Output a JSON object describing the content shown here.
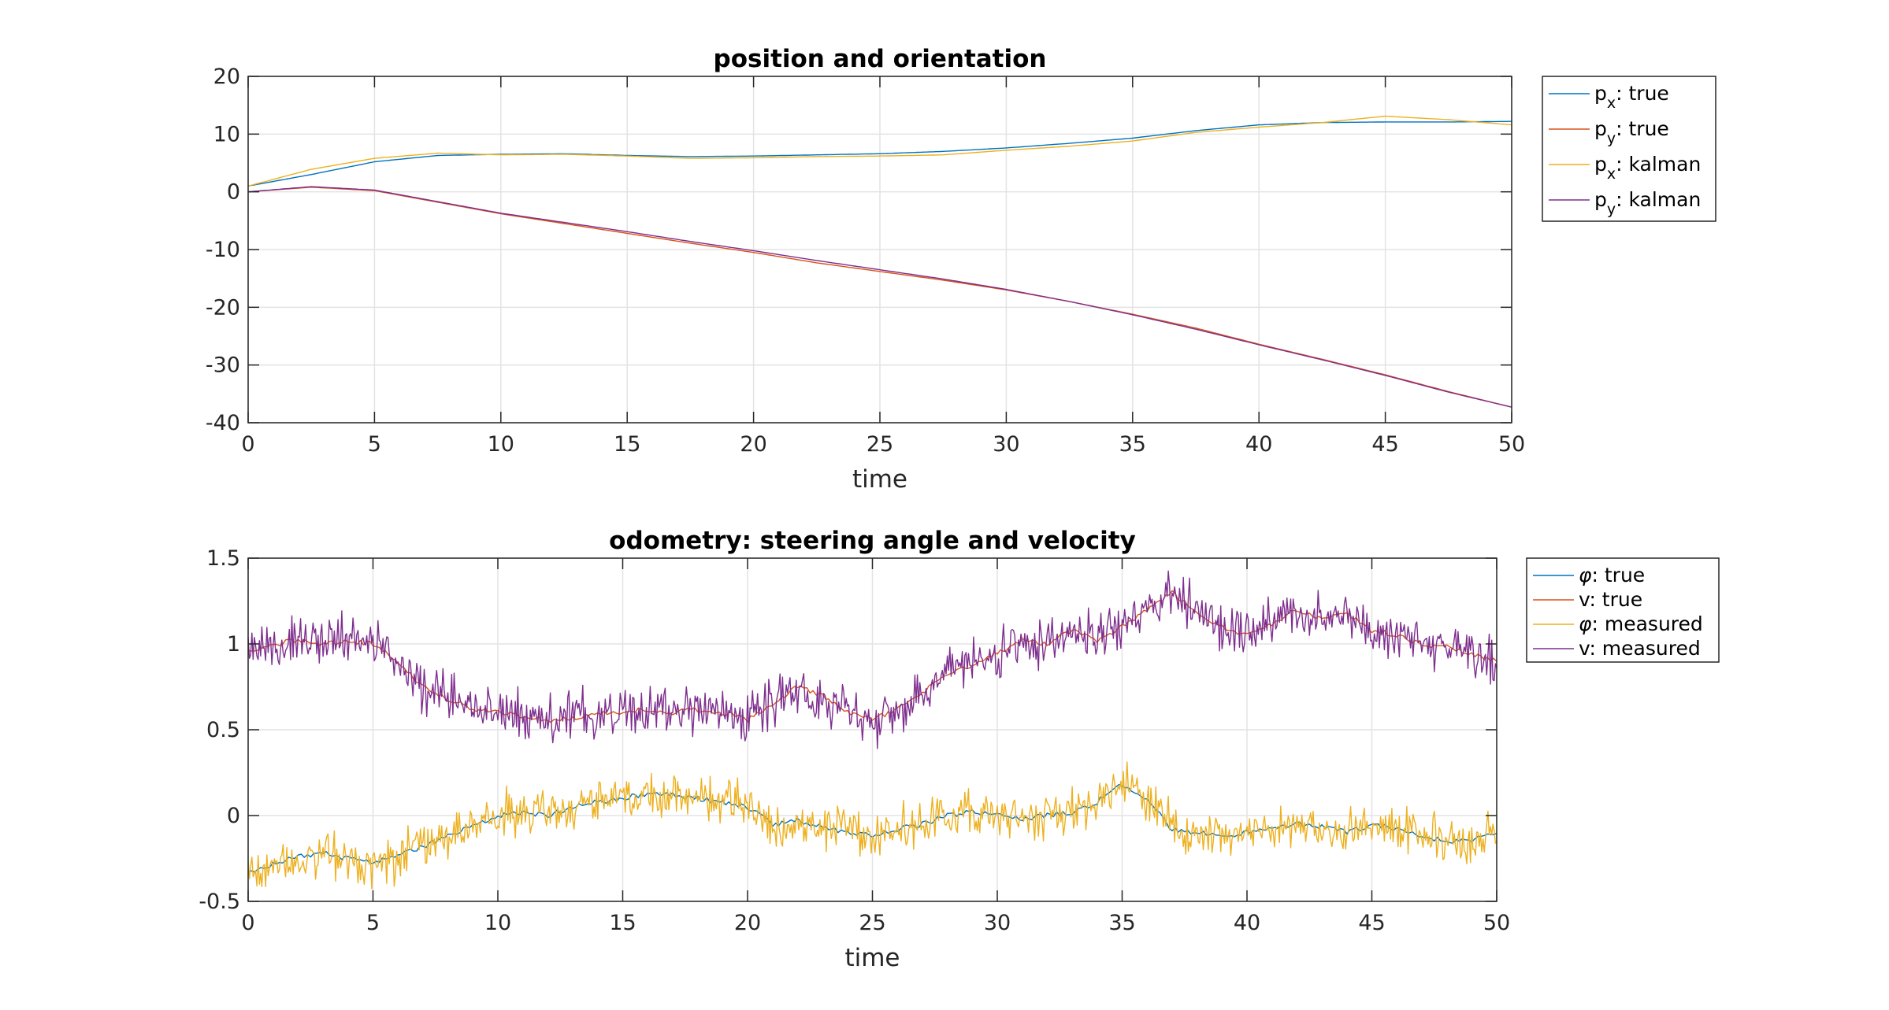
{
  "colors": {
    "blue": "#0072bd",
    "orange": "#d95319",
    "yellow": "#edb120",
    "purple": "#7e2f8e"
  },
  "chart_data": [
    {
      "type": "line",
      "title": "position and orientation",
      "xlabel": "time",
      "ylabel": "",
      "xlim": [
        0,
        50
      ],
      "ylim": [
        -40,
        20
      ],
      "xticks": [
        0,
        5,
        10,
        15,
        20,
        25,
        30,
        35,
        40,
        45,
        50
      ],
      "yticks": [
        -40,
        -30,
        -20,
        -10,
        0,
        10,
        20
      ],
      "grid": true,
      "legend_position": "outside-top-right",
      "series": [
        {
          "name": "p_x: true",
          "legend": {
            "main": "p",
            "sub": "x",
            "rest": ": true"
          },
          "color": "#0072bd",
          "x": [
            0,
            2.5,
            5,
            7.5,
            10,
            12.5,
            15,
            17.5,
            20,
            22.5,
            25,
            27.5,
            30,
            32.5,
            35,
            37.5,
            40,
            42.5,
            45,
            47.5,
            50
          ],
          "y": [
            1.0,
            3.0,
            5.2,
            6.3,
            6.5,
            6.6,
            6.3,
            6.1,
            6.2,
            6.4,
            6.6,
            7.0,
            7.6,
            8.4,
            9.3,
            10.6,
            11.6,
            12.0,
            12.1,
            12.1,
            12.2
          ]
        },
        {
          "name": "p_y: true",
          "legend": {
            "main": "p",
            "sub": "y",
            "rest": ": true"
          },
          "color": "#d95319",
          "x": [
            0,
            2.5,
            5,
            7.5,
            10,
            12.5,
            15,
            17.5,
            20,
            22.5,
            25,
            27.5,
            30,
            32.5,
            35,
            37.5,
            40,
            42.5,
            45,
            47.5,
            50
          ],
          "y": [
            0.0,
            0.8,
            0.2,
            -1.8,
            -3.8,
            -5.5,
            -7.2,
            -8.9,
            -10.5,
            -12.3,
            -13.8,
            -15.3,
            -17.0,
            -19.0,
            -21.2,
            -23.6,
            -26.4,
            -29.0,
            -31.7,
            -34.6,
            -37.3
          ]
        },
        {
          "name": "p_x: kalman",
          "legend": {
            "main": "p",
            "sub": "x",
            "rest": ": kalman"
          },
          "color": "#edb120",
          "x": [
            0,
            2.5,
            5,
            7.5,
            10,
            12.5,
            15,
            17.5,
            20,
            22.5,
            25,
            27.5,
            30,
            32.5,
            35,
            37.5,
            40,
            42.5,
            45,
            47.5,
            50
          ],
          "y": [
            1.0,
            3.9,
            5.8,
            6.7,
            6.4,
            6.5,
            6.2,
            5.8,
            5.9,
            6.1,
            6.2,
            6.4,
            7.2,
            7.9,
            8.8,
            10.3,
            11.2,
            12.0,
            13.1,
            12.5,
            11.6
          ]
        },
        {
          "name": "p_y: kalman",
          "legend": {
            "main": "p",
            "sub": "y",
            "rest": ": kalman"
          },
          "color": "#7e2f8e",
          "x": [
            0,
            2.5,
            5,
            7.5,
            10,
            12.5,
            15,
            17.5,
            20,
            22.5,
            25,
            27.5,
            30,
            32.5,
            35,
            37.5,
            40,
            42.5,
            45,
            47.5,
            50
          ],
          "y": [
            0.0,
            0.9,
            0.3,
            -1.7,
            -3.7,
            -5.3,
            -6.9,
            -8.6,
            -10.2,
            -11.9,
            -13.5,
            -15.1,
            -16.9,
            -19.0,
            -21.3,
            -23.8,
            -26.5,
            -29.1,
            -31.8,
            -34.7,
            -37.3
          ]
        }
      ]
    },
    {
      "type": "line",
      "title": "odometry: steering angle and velocity",
      "xlabel": "time",
      "ylabel": "",
      "xlim": [
        0,
        50
      ],
      "ylim": [
        -0.5,
        1.5
      ],
      "xticks": [
        0,
        5,
        10,
        15,
        20,
        25,
        30,
        35,
        40,
        45,
        50
      ],
      "yticks": [
        -0.5,
        0,
        0.5,
        1,
        1.5
      ],
      "grid": true,
      "legend_position": "outside-top-right",
      "series": [
        {
          "name": "φ: true",
          "legend": {
            "main": "φ",
            "sub": "",
            "rest": ": true"
          },
          "color": "#0072bd",
          "x": [
            0,
            1,
            2,
            3,
            4,
            5,
            6,
            7,
            8,
            9,
            10,
            11,
            12,
            13,
            14,
            15,
            16,
            17,
            18,
            19,
            20,
            21,
            22,
            23,
            24,
            25,
            26,
            27,
            28,
            29,
            30,
            31,
            32,
            33,
            34,
            35,
            36,
            37,
            38,
            39,
            40,
            41,
            42,
            43,
            44,
            45,
            46,
            47,
            48,
            49,
            50
          ],
          "y": [
            -0.33,
            -0.28,
            -0.24,
            -0.22,
            -0.25,
            -0.27,
            -0.23,
            -0.18,
            -0.12,
            -0.06,
            0.0,
            0.02,
            0.0,
            0.05,
            0.08,
            0.1,
            0.13,
            0.12,
            0.1,
            0.08,
            0.05,
            -0.05,
            -0.03,
            -0.06,
            -0.1,
            -0.12,
            -0.08,
            -0.05,
            0.0,
            0.02,
            0.0,
            -0.02,
            0.0,
            0.02,
            0.08,
            0.18,
            0.1,
            -0.08,
            -0.1,
            -0.12,
            -0.1,
            -0.08,
            -0.05,
            -0.06,
            -0.1,
            -0.05,
            -0.08,
            -0.12,
            -0.15,
            -0.14,
            -0.1
          ]
        },
        {
          "name": "v: true",
          "legend": {
            "main": "v",
            "sub": "",
            "rest": ": true"
          },
          "color": "#d95319",
          "x": [
            0,
            1,
            2,
            3,
            4,
            5,
            6,
            7,
            8,
            9,
            10,
            11,
            12,
            13,
            14,
            15,
            16,
            17,
            18,
            19,
            20,
            21,
            22,
            23,
            24,
            25,
            26,
            27,
            28,
            29,
            30,
            31,
            32,
            33,
            34,
            35,
            36,
            37,
            38,
            39,
            40,
            41,
            42,
            43,
            44,
            45,
            46,
            47,
            48,
            49,
            50
          ],
          "y": [
            0.96,
            1.0,
            1.02,
            1.0,
            1.02,
            1.0,
            0.9,
            0.75,
            0.68,
            0.62,
            0.6,
            0.58,
            0.55,
            0.57,
            0.6,
            0.6,
            0.62,
            0.6,
            0.62,
            0.6,
            0.56,
            0.65,
            0.75,
            0.7,
            0.6,
            0.56,
            0.62,
            0.72,
            0.82,
            0.88,
            0.95,
            1.02,
            1.0,
            1.08,
            1.02,
            1.1,
            1.2,
            1.3,
            1.18,
            1.1,
            1.05,
            1.12,
            1.2,
            1.15,
            1.18,
            1.08,
            1.05,
            1.0,
            0.98,
            0.94,
            0.9
          ]
        },
        {
          "name": "φ: measured",
          "legend": {
            "main": "φ",
            "sub": "",
            "rest": ": measured"
          },
          "color": "#edb120",
          "x": [
            0,
            1,
            2,
            3,
            4,
            5,
            6,
            7,
            8,
            9,
            10,
            11,
            12,
            13,
            14,
            15,
            16,
            17,
            18,
            19,
            20,
            21,
            22,
            23,
            24,
            25,
            26,
            27,
            28,
            29,
            30,
            31,
            32,
            33,
            34,
            35,
            36,
            37,
            38,
            39,
            40,
            41,
            42,
            43,
            44,
            45,
            46,
            47,
            48,
            49,
            50
          ],
          "y": [
            -0.33,
            -0.28,
            -0.24,
            -0.22,
            -0.25,
            -0.27,
            -0.23,
            -0.18,
            -0.12,
            -0.06,
            0.0,
            0.02,
            0.0,
            0.05,
            0.08,
            0.1,
            0.13,
            0.12,
            0.1,
            0.08,
            0.05,
            -0.05,
            -0.03,
            -0.06,
            -0.1,
            -0.12,
            -0.08,
            -0.05,
            0.0,
            0.02,
            0.0,
            -0.02,
            0.0,
            0.02,
            0.08,
            0.18,
            0.1,
            -0.08,
            -0.1,
            -0.12,
            -0.1,
            -0.08,
            -0.05,
            -0.06,
            -0.1,
            -0.05,
            -0.08,
            -0.12,
            -0.15,
            -0.14,
            -0.1
          ],
          "noise_amplitude": 0.12
        },
        {
          "name": "v: measured",
          "legend": {
            "main": "v",
            "sub": "",
            "rest": ": measured"
          },
          "color": "#7e2f8e",
          "x": [
            0,
            1,
            2,
            3,
            4,
            5,
            6,
            7,
            8,
            9,
            10,
            11,
            12,
            13,
            14,
            15,
            16,
            17,
            18,
            19,
            20,
            21,
            22,
            23,
            24,
            25,
            26,
            27,
            28,
            29,
            30,
            31,
            32,
            33,
            34,
            35,
            36,
            37,
            38,
            39,
            40,
            41,
            42,
            43,
            44,
            45,
            46,
            47,
            48,
            49,
            50
          ],
          "y": [
            0.96,
            1.0,
            1.02,
            1.0,
            1.02,
            1.0,
            0.9,
            0.75,
            0.68,
            0.62,
            0.6,
            0.58,
            0.55,
            0.57,
            0.6,
            0.6,
            0.62,
            0.6,
            0.62,
            0.6,
            0.56,
            0.65,
            0.75,
            0.7,
            0.6,
            0.56,
            0.62,
            0.72,
            0.82,
            0.88,
            0.95,
            1.02,
            1.0,
            1.08,
            1.02,
            1.1,
            1.2,
            1.3,
            1.18,
            1.1,
            1.05,
            1.12,
            1.2,
            1.15,
            1.18,
            1.08,
            1.05,
            1.0,
            0.98,
            0.94,
            0.9
          ],
          "noise_amplitude": 0.13
        }
      ]
    }
  ]
}
